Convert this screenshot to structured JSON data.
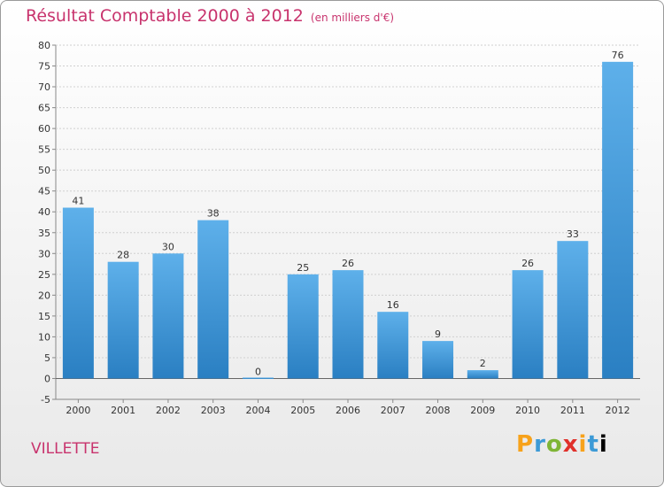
{
  "chart_data": {
    "type": "bar",
    "title": "Résultat Comptable 2000 à 2012",
    "subtitle": "(en milliers d'€)",
    "categories": [
      "2000",
      "2001",
      "2002",
      "2003",
      "2004",
      "2005",
      "2006",
      "2007",
      "2008",
      "2009",
      "2010",
      "2011",
      "2012"
    ],
    "values": [
      41,
      28,
      30,
      38,
      0,
      25,
      26,
      16,
      9,
      2,
      26,
      33,
      76
    ],
    "ylim": [
      -5,
      80
    ],
    "yticks": [
      -5,
      0,
      5,
      10,
      15,
      20,
      25,
      30,
      35,
      40,
      45,
      50,
      55,
      60,
      65,
      70,
      75,
      80
    ],
    "grid": true,
    "colors": {
      "bar_top": "#5eb0ea",
      "bar_bottom": "#2a7fc2",
      "title": "#c8336d"
    }
  },
  "commune": "VILLETTE",
  "logo": {
    "letters": [
      "P",
      "r",
      "o",
      "x",
      "i",
      "t",
      "i"
    ]
  }
}
